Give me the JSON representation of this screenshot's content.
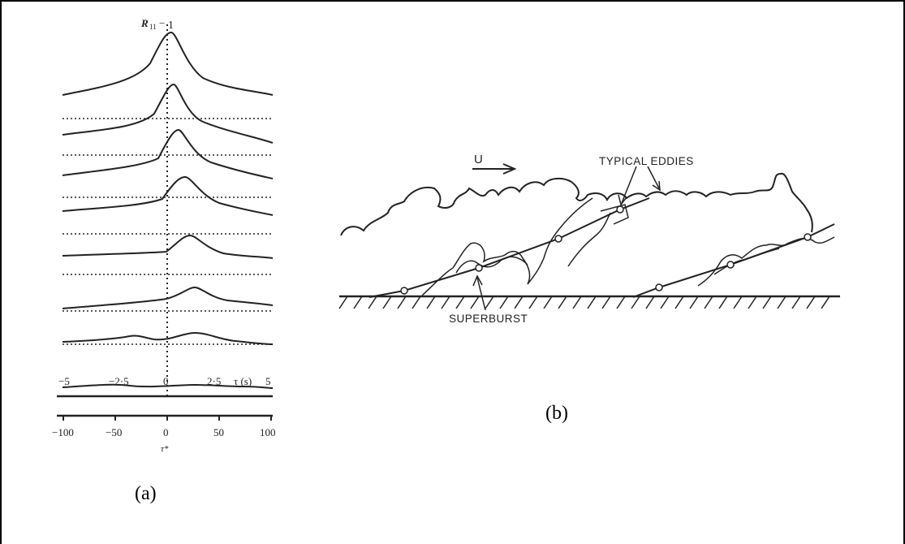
{
  "panel_a": {
    "ylabel": "R",
    "ylabel_sub": "11",
    "peak_label": "1",
    "top_axis_ticks": [
      "−5",
      "−2·5",
      "0",
      "2·5",
      "5"
    ],
    "top_axis_label": "τ (s)",
    "bottom_axis_ticks": [
      "−100",
      "−50",
      "0",
      "50",
      "100"
    ],
    "bottom_axis_label": "τ*",
    "caption": "(a)",
    "curve_count": 8
  },
  "panel_b": {
    "flow_label": "U",
    "eddies_label": "TYPICAL EDDIES",
    "superburst_label": "SUPERBURST",
    "caption": "(b)"
  },
  "colors": {
    "ink": "#222222",
    "border": "#000000",
    "background": "#ffffff"
  }
}
